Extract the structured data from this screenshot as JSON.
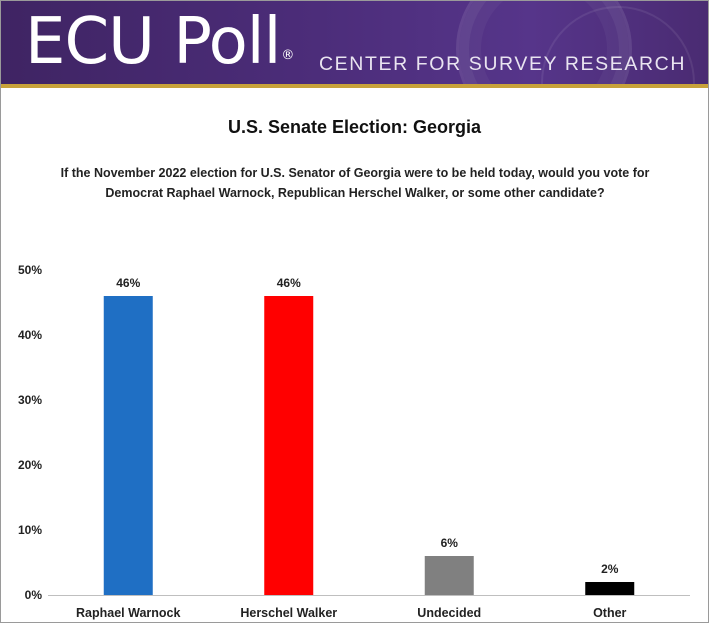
{
  "header": {
    "logo_text": "ECU Poll",
    "logo_mark": "®",
    "subtitle": "CENTER FOR SURVEY RESEARCH"
  },
  "title": "U.S. Senate Election: Georgia",
  "question": "If the November 2022 election for U.S. Senator of Georgia were to be held today, would you vote for Democrat Raphael Warnock, Republican Herschel Walker, or some other candidate?",
  "colors": {
    "brand_purple": "#4a2b72",
    "gold": "#c8a23a"
  },
  "chart_data": {
    "type": "bar",
    "title": "U.S. Senate Election: Georgia",
    "xlabel": "",
    "ylabel": "",
    "categories": [
      "Raphael Warnock",
      "Herschel Walker",
      "Undecided",
      "Other"
    ],
    "values": [
      46,
      46,
      6,
      2
    ],
    "data_labels": [
      "46%",
      "46%",
      "6%",
      "2%"
    ],
    "bar_colors": [
      "#1f6fc4",
      "#ff0000",
      "#808080",
      "#000000"
    ],
    "ylim": [
      0,
      50
    ],
    "yticks": [
      0,
      10,
      20,
      30,
      40,
      50
    ],
    "ytick_labels": [
      "0%",
      "10%",
      "20%",
      "30%",
      "40%",
      "50%"
    ],
    "grid": false,
    "legend": "none"
  }
}
